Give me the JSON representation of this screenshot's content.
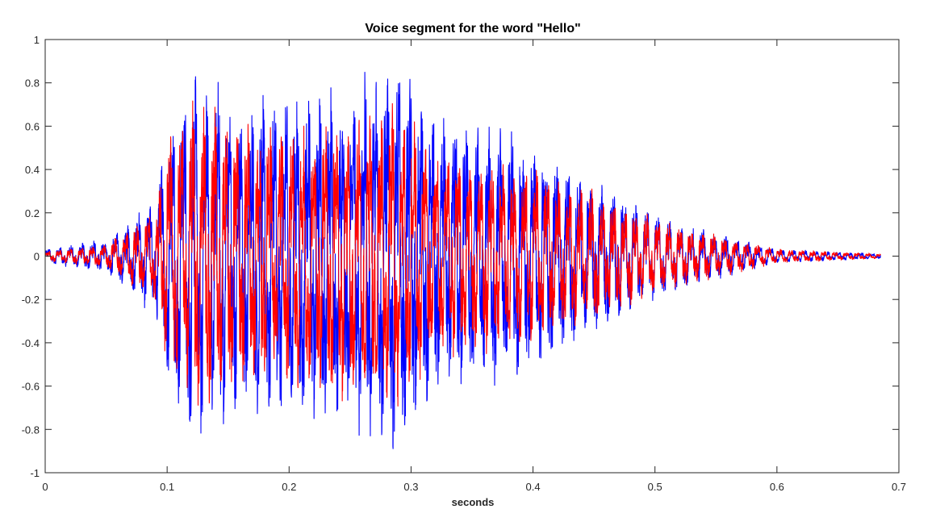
{
  "chart_data": {
    "type": "line",
    "title": "Voice segment for the word \"Hello\"",
    "xlabel": "seconds",
    "ylabel": "",
    "xlim": [
      0,
      0.7
    ],
    "ylim": [
      -1,
      1
    ],
    "xticks": [
      0,
      0.1,
      0.2,
      0.3,
      0.4,
      0.5,
      0.6,
      0.7
    ],
    "xtick_labels": [
      "0",
      "0.1",
      "0.2",
      "0.3",
      "0.4",
      "0.5",
      "0.6",
      "0.7"
    ],
    "yticks": [
      -1,
      -0.8,
      -0.6,
      -0.4,
      -0.2,
      0,
      0.2,
      0.4,
      0.6,
      0.8,
      1
    ],
    "ytick_labels": [
      "-1",
      "-0.8",
      "-0.6",
      "-0.4",
      "-0.2",
      "0",
      "0.2",
      "0.4",
      "0.6",
      "0.8",
      "1"
    ],
    "grid": false,
    "legend": false,
    "series": [
      {
        "color": "#0000ff",
        "x_end": 0.685,
        "envelope": {
          "t": [
            0,
            0.05,
            0.09,
            0.1,
            0.12,
            0.14,
            0.16,
            0.2,
            0.25,
            0.29,
            0.32,
            0.36,
            0.4,
            0.45,
            0.5,
            0.55,
            0.6,
            0.685
          ],
          "peak": [
            0.03,
            0.07,
            0.25,
            0.55,
            0.75,
            0.8,
            0.65,
            0.7,
            0.72,
            0.82,
            0.6,
            0.55,
            0.5,
            0.32,
            0.18,
            0.1,
            0.03,
            0.01
          ]
        }
      },
      {
        "color": "#ff0000",
        "x_end": 0.685,
        "envelope": {
          "t": [
            0,
            0.05,
            0.09,
            0.1,
            0.12,
            0.14,
            0.16,
            0.2,
            0.25,
            0.29,
            0.32,
            0.36,
            0.4,
            0.45,
            0.5,
            0.55,
            0.6,
            0.685
          ],
          "peak": [
            0.02,
            0.05,
            0.2,
            0.5,
            0.65,
            0.62,
            0.55,
            0.58,
            0.62,
            0.65,
            0.45,
            0.4,
            0.38,
            0.28,
            0.16,
            0.09,
            0.03,
            0.01
          ]
        }
      }
    ]
  }
}
